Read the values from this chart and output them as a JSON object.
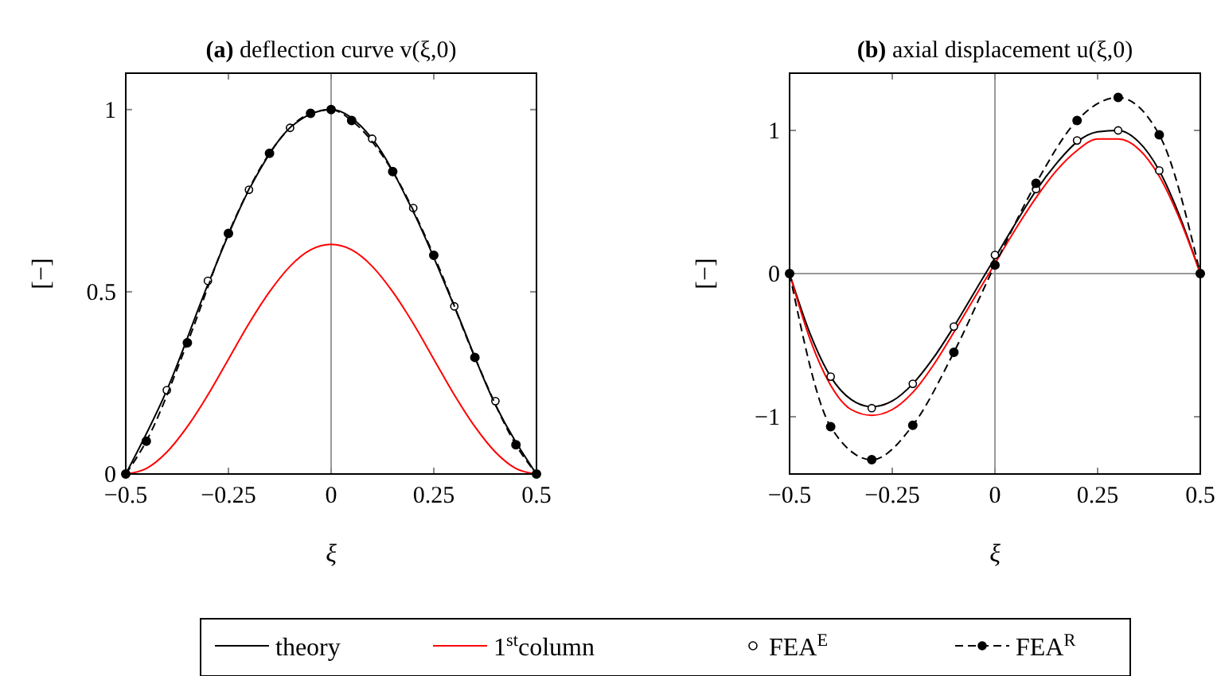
{
  "chart_data": [
    {
      "type": "line",
      "title": "(a) deflection curve v(ξ,0)",
      "xlabel": "ξ",
      "ylabel": "[−]",
      "xlim": [
        -0.5,
        0.5
      ],
      "ylim": [
        0,
        1.1
      ],
      "xticks": [
        -0.5,
        -0.25,
        0,
        0.25,
        0.5
      ],
      "yticks": [
        0,
        0.5,
        1
      ],
      "legend": "bottom",
      "ref_lines": [
        {
          "axis": "x",
          "value": 0,
          "color": "#999999"
        }
      ],
      "series": [
        {
          "name": "theory",
          "color": "#000000",
          "line_style": "solid",
          "marker": "none",
          "x": [
            -0.5,
            -0.4,
            -0.3,
            -0.2,
            -0.1,
            0,
            0.1,
            0.2,
            0.3,
            0.4,
            0.5
          ],
          "values": [
            0,
            0.23,
            0.52,
            0.78,
            0.95,
            1,
            0.92,
            0.72,
            0.46,
            0.19,
            0
          ]
        },
        {
          "name": "1$^{st}$column",
          "color": "#ff0000",
          "line_style": "solid",
          "marker": "none",
          "x": [
            -0.5,
            -0.45,
            -0.4,
            -0.35,
            -0.3,
            -0.25,
            -0.2,
            -0.15,
            -0.1,
            -0.05,
            0,
            0.05,
            0.1,
            0.15,
            0.2,
            0.25,
            0.3,
            0.35,
            0.4,
            0.45,
            0.5
          ],
          "values": [
            0,
            0.015,
            0.06,
            0.13,
            0.217,
            0.315,
            0.413,
            0.5,
            0.57,
            0.615,
            0.63,
            0.615,
            0.57,
            0.5,
            0.413,
            0.315,
            0.217,
            0.13,
            0.06,
            0.015,
            0
          ]
        },
        {
          "name": "FEA$^{E}$",
          "type": "scatter",
          "color": "#000000",
          "marker": "circle",
          "x": [
            -0.4,
            -0.3,
            -0.2,
            -0.1,
            0.1,
            0.2,
            0.3,
            0.4
          ],
          "values": [
            0.23,
            0.53,
            0.78,
            0.95,
            0.92,
            0.73,
            0.46,
            0.2
          ]
        },
        {
          "name": "FEA$^{R}$",
          "color": "#000000",
          "line_style": "dashed",
          "marker": "circle",
          "x": [
            -0.5,
            -0.45,
            -0.35,
            -0.25,
            -0.15,
            -0.05,
            0,
            0.05,
            0.15,
            0.25,
            0.35,
            0.45,
            0.5
          ],
          "values": [
            0,
            0.09,
            0.36,
            0.66,
            0.88,
            0.99,
            1,
            0.97,
            0.83,
            0.6,
            0.32,
            0.08,
            0
          ]
        }
      ]
    },
    {
      "type": "line",
      "title": "(b) axial displacement u(ξ,0)",
      "xlabel": "ξ",
      "ylabel": "[−]",
      "xlim": [
        -0.5,
        0.5
      ],
      "ylim": [
        -1.4,
        1.4
      ],
      "xticks": [
        -0.5,
        -0.25,
        0,
        0.25,
        0.5
      ],
      "yticks": [
        -1,
        0,
        1
      ],
      "ref_lines": [
        {
          "axis": "x",
          "value": 0,
          "color": "#999999"
        },
        {
          "axis": "y",
          "value": 0,
          "color": "#999999"
        }
      ],
      "series": [
        {
          "name": "theory",
          "color": "#000000",
          "line_style": "solid",
          "marker": "none",
          "x": [
            -0.5,
            -0.45,
            -0.4,
            -0.35,
            -0.3,
            -0.25,
            -0.2,
            -0.15,
            -0.1,
            -0.05,
            0,
            0.05,
            0.1,
            0.15,
            0.2,
            0.25,
            0.3,
            0.35,
            0.4,
            0.45,
            0.5
          ],
          "values": [
            0,
            -0.42,
            -0.72,
            -0.88,
            -0.93,
            -0.89,
            -0.77,
            -0.59,
            -0.37,
            -0.13,
            0.11,
            0.35,
            0.58,
            0.77,
            0.92,
            0.99,
            1,
            0.92,
            0.72,
            0.4,
            0
          ]
        },
        {
          "name": "1$^{st}$column",
          "color": "#ff0000",
          "line_style": "solid",
          "marker": "none",
          "x": [
            -0.5,
            -0.45,
            -0.4,
            -0.35,
            -0.3,
            -0.25,
            -0.2,
            -0.15,
            -0.1,
            -0.05,
            0,
            0.05,
            0.1,
            0.15,
            0.2,
            0.25,
            0.3,
            0.35,
            0.4,
            0.45,
            0.5
          ],
          "values": [
            0,
            -0.46,
            -0.78,
            -0.95,
            -0.99,
            -0.95,
            -0.83,
            -0.64,
            -0.41,
            -0.17,
            0.07,
            0.31,
            0.53,
            0.72,
            0.86,
            0.94,
            0.94,
            0.87,
            0.68,
            0.38,
            0
          ]
        },
        {
          "name": "FEA$^{E}$",
          "type": "scatter",
          "color": "#000000",
          "marker": "circle",
          "x": [
            -0.5,
            -0.4,
            -0.3,
            -0.2,
            -0.1,
            0,
            0.1,
            0.2,
            0.3,
            0.4,
            0.5
          ],
          "values": [
            0,
            -0.72,
            -0.94,
            -0.77,
            -0.37,
            0.13,
            0.59,
            0.93,
            1,
            0.72,
            0
          ]
        },
        {
          "name": "FEA$^{R}$",
          "color": "#000000",
          "line_style": "dashed",
          "marker": "circle",
          "x": [
            -0.5,
            -0.4,
            -0.3,
            -0.2,
            -0.1,
            0,
            0.1,
            0.2,
            0.3,
            0.4,
            0.5
          ],
          "values": [
            0,
            -1.07,
            -1.3,
            -1.06,
            -0.55,
            0.06,
            0.63,
            1.07,
            1.23,
            0.97,
            0
          ]
        }
      ]
    }
  ]
}
